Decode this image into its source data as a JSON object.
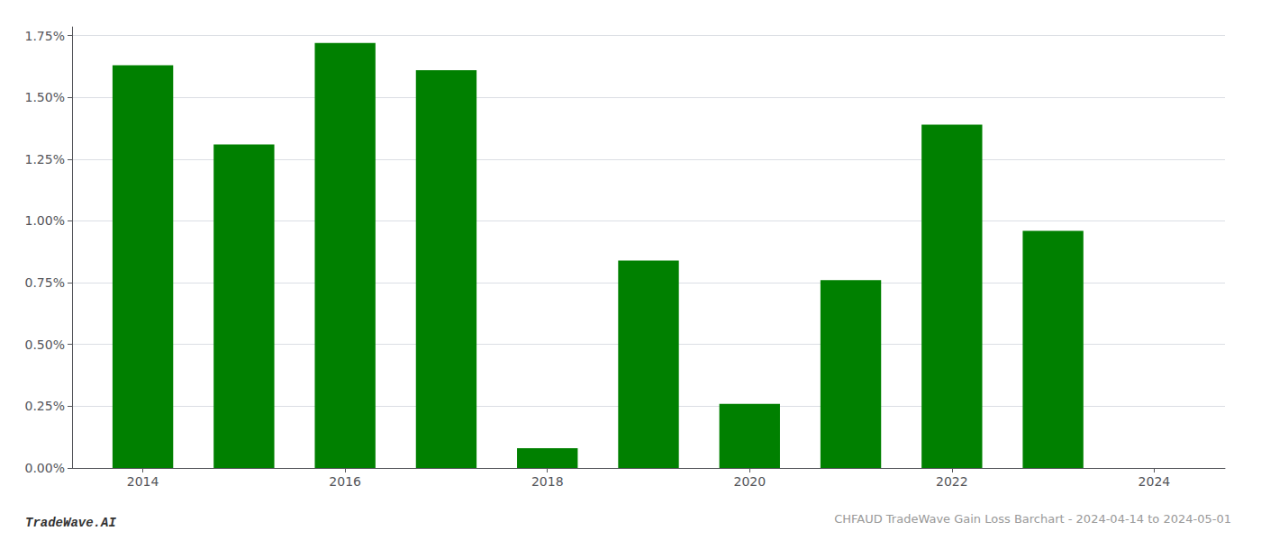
{
  "chart_data": {
    "type": "bar",
    "title": "CHFAUD TradeWave Gain Loss Barchart - 2024-04-14 to 2024-05-01",
    "annotations": [
      "TradeWave.AI"
    ],
    "x": [
      2014,
      2015,
      2016,
      2017,
      2018,
      2019,
      2020,
      2021,
      2022,
      2023
    ],
    "values": [
      0.0163,
      0.0131,
      0.0172,
      0.0161,
      0.0008,
      0.0084,
      0.0026,
      0.0076,
      0.0139,
      0.0096
    ],
    "color": "#008000",
    "xlim": [
      2013.3,
      2024.7
    ],
    "xticks": [
      2014,
      2016,
      2018,
      2020,
      2022,
      2024
    ],
    "ylim": [
      0.0,
      0.01785
    ],
    "yticks": [
      {
        "value": 0.0,
        "label": "0.00%"
      },
      {
        "value": 0.0025,
        "label": "0.25%"
      },
      {
        "value": 0.005,
        "label": "0.50%"
      },
      {
        "value": 0.0075,
        "label": "0.75%"
      },
      {
        "value": 0.01,
        "label": "1.00%"
      },
      {
        "value": 0.0125,
        "label": "1.25%"
      },
      {
        "value": 0.015,
        "label": "1.50%"
      },
      {
        "value": 0.0175,
        "label": "1.75%"
      }
    ],
    "grid": true
  }
}
